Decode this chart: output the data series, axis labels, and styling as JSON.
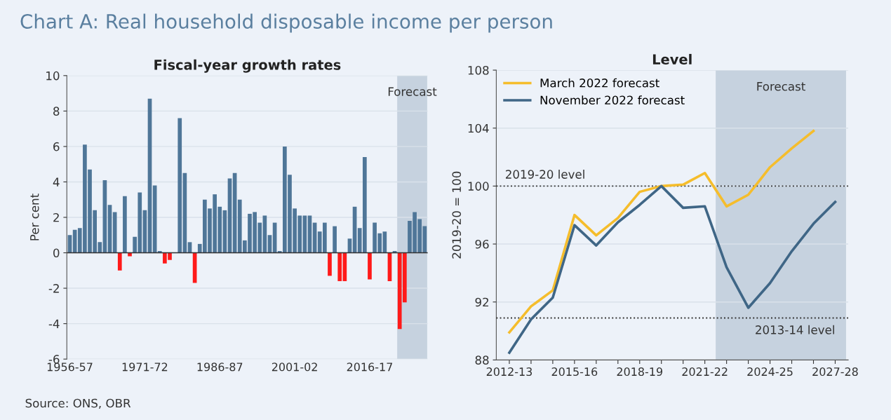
{
  "chart_data": [
    {
      "type": "bar",
      "title": "Chart A: Real household disposable income per person",
      "subtitle": "Fiscal-year growth rates",
      "ylabel": "Per cent",
      "categories": [
        "1956-57",
        null,
        null,
        null,
        null,
        null,
        null,
        null,
        null,
        null,
        null,
        null,
        null,
        null,
        null,
        "1971-72",
        null,
        null,
        null,
        null,
        null,
        null,
        null,
        null,
        null,
        null,
        null,
        null,
        null,
        null,
        "1986-87",
        null,
        null,
        null,
        null,
        null,
        null,
        null,
        null,
        null,
        null,
        null,
        null,
        null,
        null,
        "2001-02",
        null,
        null,
        null,
        null,
        null,
        null,
        null,
        null,
        null,
        null,
        null,
        null,
        null,
        null,
        "2016-17",
        null,
        null,
        null,
        null,
        null,
        null,
        null,
        null,
        null,
        null,
        null
      ],
      "values": [
        1.0,
        1.3,
        1.4,
        6.1,
        4.7,
        2.4,
        0.6,
        4.1,
        2.7,
        2.3,
        -1.0,
        3.2,
        -0.2,
        0.9,
        3.4,
        2.4,
        8.7,
        3.8,
        0.1,
        -0.6,
        -0.4,
        0.0,
        7.6,
        4.5,
        0.6,
        -1.7,
        0.5,
        3.0,
        2.5,
        3.3,
        2.6,
        2.4,
        4.2,
        4.5,
        3.0,
        0.7,
        2.2,
        2.3,
        1.7,
        2.1,
        1.0,
        1.7,
        0.1,
        6.0,
        4.4,
        2.5,
        2.1,
        2.1,
        2.1,
        1.7,
        1.2,
        1.7,
        -1.3,
        1.5,
        -1.6,
        -1.6,
        0.8,
        2.6,
        1.4,
        5.4,
        -1.5,
        1.7,
        1.1,
        1.2,
        -1.6,
        0.1,
        -4.3,
        -2.8,
        1.8,
        2.3,
        1.9,
        1.5
      ],
      "colors": [
        "#4f7698",
        "#4f7698",
        "#4f7698",
        "#4f7698",
        "#4f7698",
        "#4f7698",
        "#4f7698",
        "#4f7698",
        "#4f7698",
        "#4f7698",
        "#ff1a1a",
        "#4f7698",
        "#ff1a1a",
        "#4f7698",
        "#4f7698",
        "#4f7698",
        "#4f7698",
        "#4f7698",
        "#4f7698",
        "#ff1a1a",
        "#ff1a1a",
        "#4f7698",
        "#4f7698",
        "#4f7698",
        "#4f7698",
        "#ff1a1a",
        "#4f7698",
        "#4f7698",
        "#4f7698",
        "#4f7698",
        "#4f7698",
        "#4f7698",
        "#4f7698",
        "#4f7698",
        "#4f7698",
        "#4f7698",
        "#4f7698",
        "#4f7698",
        "#4f7698",
        "#4f7698",
        "#4f7698",
        "#4f7698",
        "#4f7698",
        "#4f7698",
        "#4f7698",
        "#4f7698",
        "#4f7698",
        "#4f7698",
        "#4f7698",
        "#4f7698",
        "#4f7698",
        "#4f7698",
        "#ff1a1a",
        "#4f7698",
        "#ff1a1a",
        "#ff1a1a",
        "#4f7698",
        "#4f7698",
        "#4f7698",
        "#4f7698",
        "#ff1a1a",
        "#4f7698",
        "#4f7698",
        "#4f7698",
        "#ff1a1a",
        "#4f7698",
        "#ff1a1a",
        "#ff1a1a",
        "#4f7698",
        "#4f7698",
        "#4f7698",
        "#4f7698"
      ],
      "ylim": [
        -6,
        10
      ],
      "yticks": [
        -6,
        -4,
        -2,
        0,
        2,
        4,
        6,
        8,
        10
      ],
      "grid": "y",
      "bands": [
        {
          "axis": "x",
          "from": "2022-23",
          "to": "2027-28",
          "label": "Forecast",
          "color": "#c6d2df"
        }
      ],
      "annotations": [
        "Source: ONS, OBR"
      ]
    },
    {
      "type": "line",
      "title": "Level",
      "ylabel": "2019-20 = 100",
      "categories": [
        "2012-13",
        null,
        null,
        "2015-16",
        null,
        null,
        "2018-19",
        null,
        null,
        "2021-22",
        null,
        null,
        "2024-25",
        null,
        null,
        "2027-28"
      ],
      "series": [
        {
          "name": "March 2022 forecast",
          "color": "#f5bd2c",
          "values": [
            89.9,
            91.7,
            92.8,
            98.0,
            96.6,
            97.8,
            99.6,
            100.0,
            100.1,
            100.9,
            98.6,
            99.4,
            101.3,
            102.6,
            103.8,
            null
          ]
        },
        {
          "name": "November 2022 forecast",
          "color": "#3f6686",
          "values": [
            88.5,
            90.8,
            92.3,
            97.3,
            95.9,
            97.5,
            98.7,
            100.0,
            98.5,
            98.6,
            94.4,
            91.6,
            93.3,
            95.5,
            97.4,
            98.9
          ]
        }
      ],
      "ylim": [
        88,
        108
      ],
      "yticks": [
        88,
        92,
        96,
        100,
        104,
        108
      ],
      "grid": "y",
      "legend": "top left",
      "ref_lines": [
        {
          "axis": "y",
          "value": 100,
          "label": "2019-20 level",
          "line_style": "dotted"
        },
        {
          "axis": "y",
          "value": 90.9,
          "label": "2013-14 level",
          "line_style": "dotted"
        }
      ],
      "bands": [
        {
          "axis": "x",
          "from": "2022-23",
          "to": "2027-28",
          "label": "Forecast",
          "color": "#c6d2df"
        }
      ]
    }
  ]
}
